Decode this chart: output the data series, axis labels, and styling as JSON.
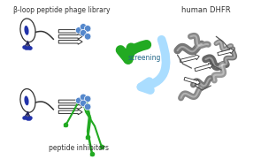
{
  "title_top_left": "β-loop peptide phage library",
  "title_top_right": "human DHFR",
  "label_center": "screening",
  "label_bottom": "peptide inhibitors",
  "bg_color": "#ffffff",
  "blue_circle_color": "#5588cc",
  "green_color": "#22aa22",
  "dark": "#333333",
  "navy": "#2233aa",
  "text_color": "#333333",
  "figsize": [
    2.95,
    1.89
  ],
  "dpi": 100
}
